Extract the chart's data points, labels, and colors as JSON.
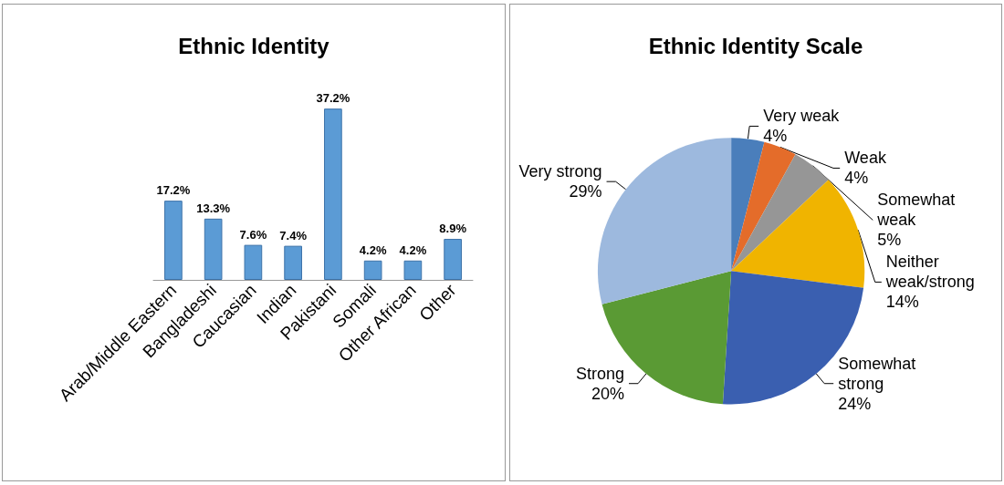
{
  "chart_data": [
    {
      "type": "bar",
      "title": "Ethnic Identity",
      "categories": [
        "Arab/Middle Eastern",
        "Bangladeshi",
        "Caucasian",
        "Indian",
        "Pakistani",
        "Somali",
        "Other African",
        "Other"
      ],
      "values": [
        17.2,
        13.3,
        7.6,
        7.4,
        37.2,
        4.2,
        4.2,
        8.9
      ],
      "value_labels": [
        "17.2%",
        "13.3%",
        "7.6%",
        "7.4%",
        "37.2%",
        "4.2%",
        "4.2%",
        "8.9%"
      ],
      "color": "#5b9bd5",
      "legend": false,
      "grid": false
    },
    {
      "type": "pie",
      "title": "Ethnic Identity Scale",
      "categories": [
        "Very weak",
        "Weak",
        "Somewhat weak",
        "Neither weak/strong",
        "Somewhat strong",
        "Strong",
        "Very strong"
      ],
      "values": [
        4,
        4,
        5,
        14,
        24,
        20,
        29
      ],
      "value_labels": [
        "4%",
        "4%",
        "5%",
        "14%",
        "24%",
        "20%",
        "29%"
      ],
      "colors": [
        "#4a7ebb",
        "#e46c2a",
        "#969696",
        "#f0b400",
        "#3a5fb0",
        "#5a9a34",
        "#9db9de"
      ],
      "legend": false
    }
  ]
}
